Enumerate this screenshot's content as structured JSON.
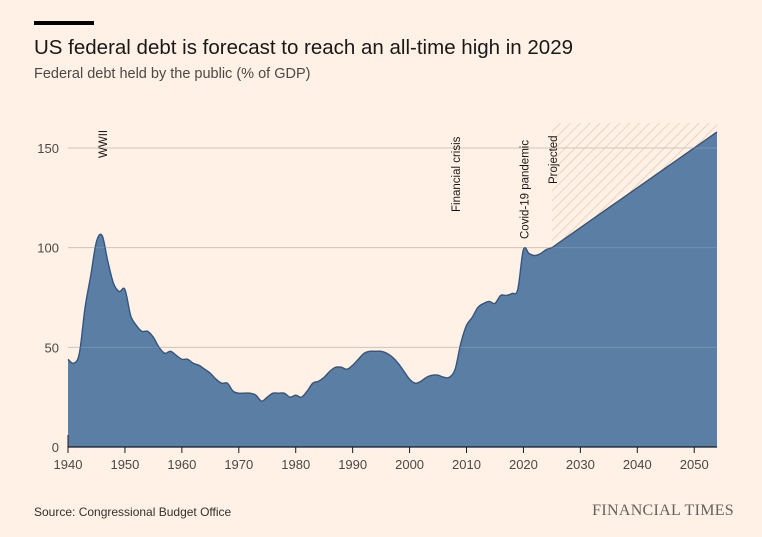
{
  "header": {
    "title": "US federal debt is forecast to reach an all-time high in 2029",
    "subtitle": "Federal debt held by the public (% of GDP)"
  },
  "footer": {
    "source": "Source: Congressional Budget Office",
    "brand": "FINANCIAL TIMES"
  },
  "colors": {
    "background": "#fff1e5",
    "area_fill": "#5b7fa4",
    "area_line": "#2f5585",
    "grid": "#c9bdb3",
    "hatch": "#e2c7b1"
  },
  "chart_data": {
    "type": "area",
    "title": "US federal debt is forecast to reach an all-time high in 2029",
    "subtitle": "Federal debt held by the public (% of GDP)",
    "xlabel": "",
    "ylabel": "",
    "xlim": [
      1940,
      2054
    ],
    "ylim": [
      0,
      160
    ],
    "xticks": [
      1940,
      1950,
      1960,
      1970,
      1980,
      1990,
      2000,
      2010,
      2020,
      2030,
      2040,
      2050
    ],
    "yticks": [
      0,
      50,
      100,
      150
    ],
    "grid": true,
    "projection_start": 2025,
    "annotations": [
      {
        "label": "WWII",
        "x": 1946
      },
      {
        "label": "Financial crisis",
        "x": 2008
      },
      {
        "label": "Covid-19 pandemic",
        "x": 2020
      },
      {
        "label": "Projected",
        "x": 2025
      }
    ],
    "series": [
      {
        "name": "Federal debt held by the public",
        "x": [
          1940,
          1941,
          1942,
          1943,
          1944,
          1945,
          1946,
          1947,
          1948,
          1949,
          1950,
          1951,
          1952,
          1953,
          1954,
          1955,
          1956,
          1957,
          1958,
          1959,
          1960,
          1961,
          1962,
          1963,
          1964,
          1965,
          1966,
          1967,
          1968,
          1969,
          1970,
          1971,
          1972,
          1973,
          1974,
          1975,
          1976,
          1977,
          1978,
          1979,
          1980,
          1981,
          1982,
          1983,
          1984,
          1985,
          1986,
          1987,
          1988,
          1989,
          1990,
          1991,
          1992,
          1993,
          1994,
          1995,
          1996,
          1997,
          1998,
          1999,
          2000,
          2001,
          2002,
          2003,
          2004,
          2005,
          2006,
          2007,
          2008,
          2009,
          2010,
          2011,
          2012,
          2013,
          2014,
          2015,
          2016,
          2017,
          2018,
          2019,
          2020,
          2021,
          2022,
          2023,
          2024,
          2025,
          2026,
          2027,
          2028,
          2029,
          2030,
          2031,
          2032,
          2033,
          2034,
          2035,
          2036,
          2037,
          2038,
          2039,
          2040,
          2041,
          2042,
          2043,
          2044,
          2045,
          2046,
          2047,
          2048,
          2049,
          2050,
          2051,
          2052,
          2053,
          2054
        ],
        "values": [
          44,
          42,
          47,
          70,
          86,
          103,
          106,
          93,
          82,
          78,
          79,
          66,
          61,
          58,
          58,
          55,
          50,
          47,
          48,
          46,
          44,
          44,
          42,
          41,
          39,
          37,
          34,
          32,
          32,
          28,
          27,
          27,
          27,
          26,
          23,
          25,
          27,
          27,
          27,
          25,
          26,
          25,
          28,
          32,
          33,
          35,
          38,
          40,
          40,
          39,
          41,
          44,
          47,
          48,
          48,
          48,
          47,
          45,
          42,
          38,
          34,
          32,
          33,
          35,
          36,
          36,
          35,
          35,
          39,
          52,
          61,
          65,
          70,
          72,
          73,
          72,
          76,
          76,
          77,
          79,
          99,
          97,
          96,
          97,
          99,
          100,
          102,
          104,
          106,
          108,
          110,
          112,
          114,
          116,
          118,
          120,
          122,
          124,
          126,
          128,
          130,
          132,
          134,
          136,
          138,
          140,
          142,
          144,
          146,
          148,
          150,
          152,
          154,
          156,
          158
        ]
      }
    ]
  }
}
